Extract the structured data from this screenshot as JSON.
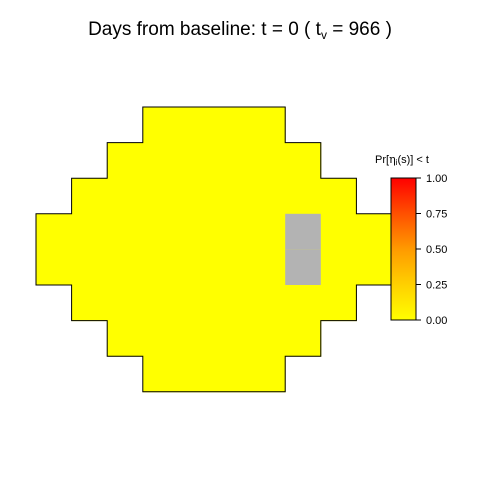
{
  "chart_data": {
    "type": "heatmap",
    "title": {
      "prefix": "Days from baseline: t =  ",
      "t_value": "0",
      "mid": "  ( t",
      "sub": "v",
      "eq": "  =  ",
      "tv_value": "966",
      "suffix": " )"
    },
    "field_grid": {
      "nrows": 8,
      "row_spans": [
        [
          3,
          6
        ],
        [
          2,
          7
        ],
        [
          1,
          8
        ],
        [
          0,
          9
        ],
        [
          0,
          9
        ],
        [
          1,
          8
        ],
        [
          2,
          7
        ],
        [
          3,
          6
        ]
      ],
      "fill_value": 0.0,
      "fill_color": "#FFFF00",
      "missing_cells": [
        {
          "row": 3,
          "col": 7
        },
        {
          "row": 4,
          "col": 7
        }
      ],
      "missing_color": "#B3B3B3"
    },
    "legend": {
      "title": {
        "prefix": "Pr[",
        "eta": "η",
        "sub": "i",
        "suffix": "(s)] < t"
      },
      "ticks": [
        "0.00",
        "0.25",
        "0.50",
        "0.75",
        "1.00"
      ],
      "range": [
        0,
        1
      ],
      "gradient_colors": [
        "#FFFF00",
        "#FFD000",
        "#FF9A00",
        "#FF5000",
        "#FF0000"
      ]
    }
  }
}
